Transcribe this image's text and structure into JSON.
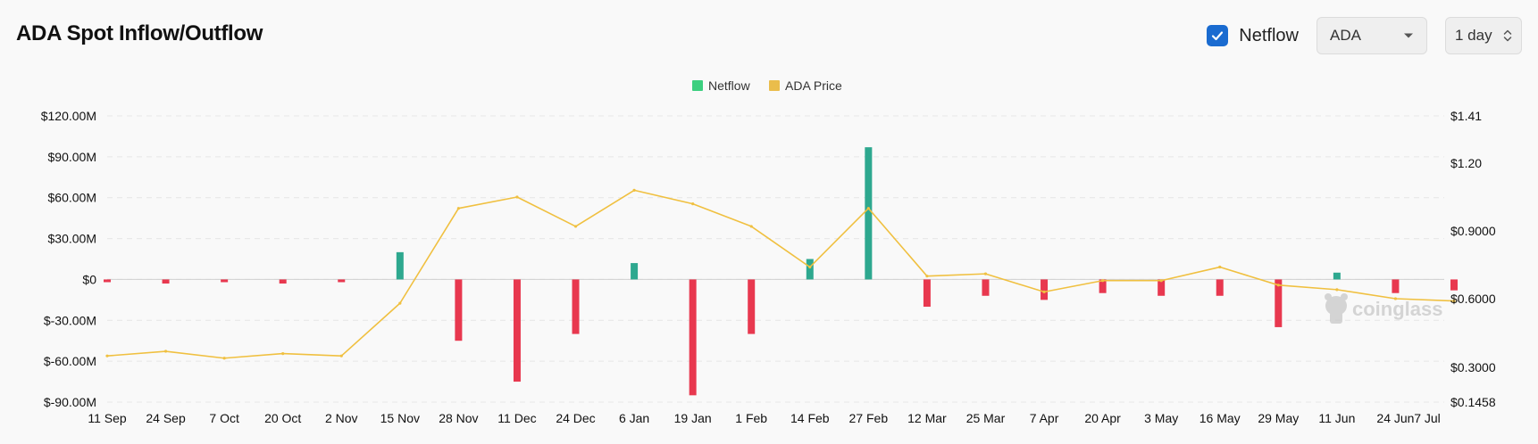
{
  "header": {
    "title": "ADA Spot Inflow/Outflow"
  },
  "controls": {
    "netflow_checked": true,
    "netflow_label": "Netflow",
    "coin_value": "ADA",
    "interval_value": "1 day"
  },
  "watermark": "coinglass",
  "colors": {
    "inflow": "#2ea88f",
    "outflow": "#e8384f",
    "price": "#f0c040",
    "legend_netflow": "#3ccf7f",
    "legend_price": "#eabd4b",
    "checkbox": "#1a6bd0"
  },
  "chart_data": {
    "type": "bar",
    "title": "",
    "legend": [
      "Netflow",
      "ADA Price"
    ],
    "legend_position": "top-center",
    "grid": true,
    "x_ticks": [
      "11 Sep",
      "24 Sep",
      "7 Oct",
      "20 Oct",
      "2 Nov",
      "15 Nov",
      "28 Nov",
      "11 Dec",
      "24 Dec",
      "6 Jan",
      "19 Jan",
      "1 Feb",
      "14 Feb",
      "27 Feb",
      "12 Mar",
      "25 Mar",
      "7 Apr",
      "20 Apr",
      "3 May",
      "16 May",
      "29 May",
      "11 Jun",
      "24 Jun",
      "7 Jul"
    ],
    "y_left": {
      "ticks": [
        "$120.00M",
        "$90.00M",
        "$60.00M",
        "$30.00M",
        "$0",
        "$-30.00M",
        "$-60.00M",
        "$-90.00M"
      ],
      "ylim": [
        -90,
        120
      ],
      "unit": "$M"
    },
    "y_right": {
      "ticks": [
        "$1.41",
        "$1.20",
        "$0.9000",
        "$0.6000",
        "$0.3000",
        "$0.1458"
      ],
      "tick_values": [
        1.41,
        1.2,
        0.9,
        0.6,
        0.3,
        0.1458
      ]
    },
    "series": [
      {
        "name": "Netflow",
        "type": "bar",
        "unit": "$M",
        "x": [
          "11 Sep",
          "24 Sep",
          "7 Oct",
          "20 Oct",
          "2 Nov",
          "15 Nov",
          "28 Nov",
          "11 Dec",
          "24 Dec",
          "6 Jan",
          "19 Jan",
          "1 Feb",
          "14 Feb",
          "27 Feb",
          "12 Mar",
          "25 Mar",
          "7 Apr",
          "20 Apr",
          "3 May",
          "16 May",
          "29 May",
          "11 Jun",
          "24 Jun",
          "7 Jul"
        ],
        "values": [
          -2,
          -3,
          -2,
          -3,
          -2,
          20,
          -45,
          -75,
          -40,
          12,
          -85,
          -40,
          15,
          97,
          -20,
          -12,
          -15,
          -10,
          -12,
          -12,
          -35,
          5,
          -10,
          -8
        ]
      },
      {
        "name": "ADA Price",
        "type": "line",
        "x": [
          "11 Sep",
          "24 Sep",
          "7 Oct",
          "20 Oct",
          "2 Nov",
          "15 Nov",
          "28 Nov",
          "11 Dec",
          "24 Dec",
          "6 Jan",
          "19 Jan",
          "1 Feb",
          "14 Feb",
          "27 Feb",
          "12 Mar",
          "25 Mar",
          "7 Apr",
          "20 Apr",
          "3 May",
          "16 May",
          "29 May",
          "11 Jun",
          "24 Jun",
          "7 Jul"
        ],
        "values": [
          0.35,
          0.37,
          0.34,
          0.36,
          0.35,
          0.58,
          1.0,
          1.05,
          0.92,
          1.08,
          1.02,
          0.92,
          0.74,
          1.0,
          0.7,
          0.71,
          0.63,
          0.68,
          0.68,
          0.74,
          0.66,
          0.64,
          0.6,
          0.59
        ]
      }
    ]
  }
}
